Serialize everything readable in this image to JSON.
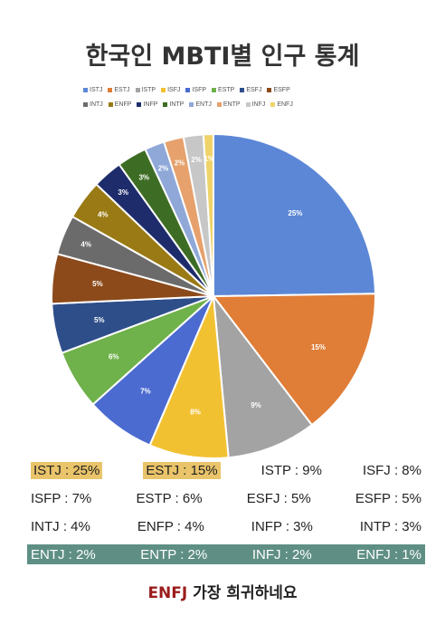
{
  "title": "한국인 MBTI별 인구 통계",
  "colors": {
    "highlight_yellow": "#e9c46a",
    "highlight_green": "#5f8f84",
    "footer_accent": "#9b1c1c"
  },
  "chart_data": {
    "type": "pie",
    "title": "한국인 MBTI별 인구 통계",
    "legend_position": "top",
    "categories": [
      "ISTJ",
      "ESTJ",
      "ISTP",
      "ISFJ",
      "ISFP",
      "ESTP",
      "ESFJ",
      "ESFP",
      "INTJ",
      "ENFP",
      "INFP",
      "INTP",
      "ENTJ",
      "ENTP",
      "INFJ",
      "ENFJ"
    ],
    "values": [
      25,
      15,
      9,
      8,
      7,
      6,
      5,
      5,
      4,
      4,
      3,
      3,
      2,
      2,
      2,
      1
    ],
    "labels": [
      "25%",
      "15%",
      "9%",
      "8%",
      "7%",
      "6%",
      "5%",
      "5%",
      "4%",
      "4%",
      "3%",
      "3%",
      "2%",
      "2%",
      "2%",
      "1%"
    ],
    "colors": [
      "#5b87d6",
      "#e07d37",
      "#a3a3a3",
      "#f2c132",
      "#4b6bd1",
      "#6fb14a",
      "#2e4e8a",
      "#8c4a1b",
      "#6b6b6b",
      "#9a7a14",
      "#1e2c6b",
      "#3d6d24",
      "#8fa8d8",
      "#e6a16c",
      "#c7c7c7",
      "#efd36a"
    ]
  },
  "legend_rows": [
    [
      "ISTJ",
      "ESTJ",
      "ISTP",
      "ISFJ",
      "ISFP",
      "ESTP",
      "ESFJ",
      "ESFP"
    ],
    [
      "INTJ",
      "ENFP",
      "INFP",
      "INTP",
      "ENTJ",
      "ENTP",
      "INFJ",
      "ENFJ"
    ]
  ],
  "summary_rows": [
    {
      "style": "yellow",
      "items": [
        "ISTJ : 25%",
        "ESTJ : 15%",
        "ISTP : 9%",
        "ISFJ : 8%"
      ],
      "highlighted": [
        true,
        true,
        false,
        false
      ]
    },
    {
      "style": "none",
      "items": [
        "ISFP : 7%",
        "ESTP : 6%",
        "ESFJ : 5%",
        "ESFP : 5%"
      ],
      "highlighted": [
        false,
        false,
        false,
        false
      ]
    },
    {
      "style": "none",
      "items": [
        "INTJ : 4%",
        "ENFP : 4%",
        "INFP : 3%",
        "INTP : 3%"
      ],
      "highlighted": [
        false,
        false,
        false,
        false
      ]
    },
    {
      "style": "green",
      "items": [
        "ENTJ : 2%",
        "ENTP : 2%",
        "INFJ : 2%",
        "ENFJ : 1%"
      ],
      "highlighted": [
        true,
        true,
        true,
        true
      ]
    }
  ],
  "footer": {
    "accent": "ENFJ",
    "text": " 가장 희귀하네요"
  }
}
